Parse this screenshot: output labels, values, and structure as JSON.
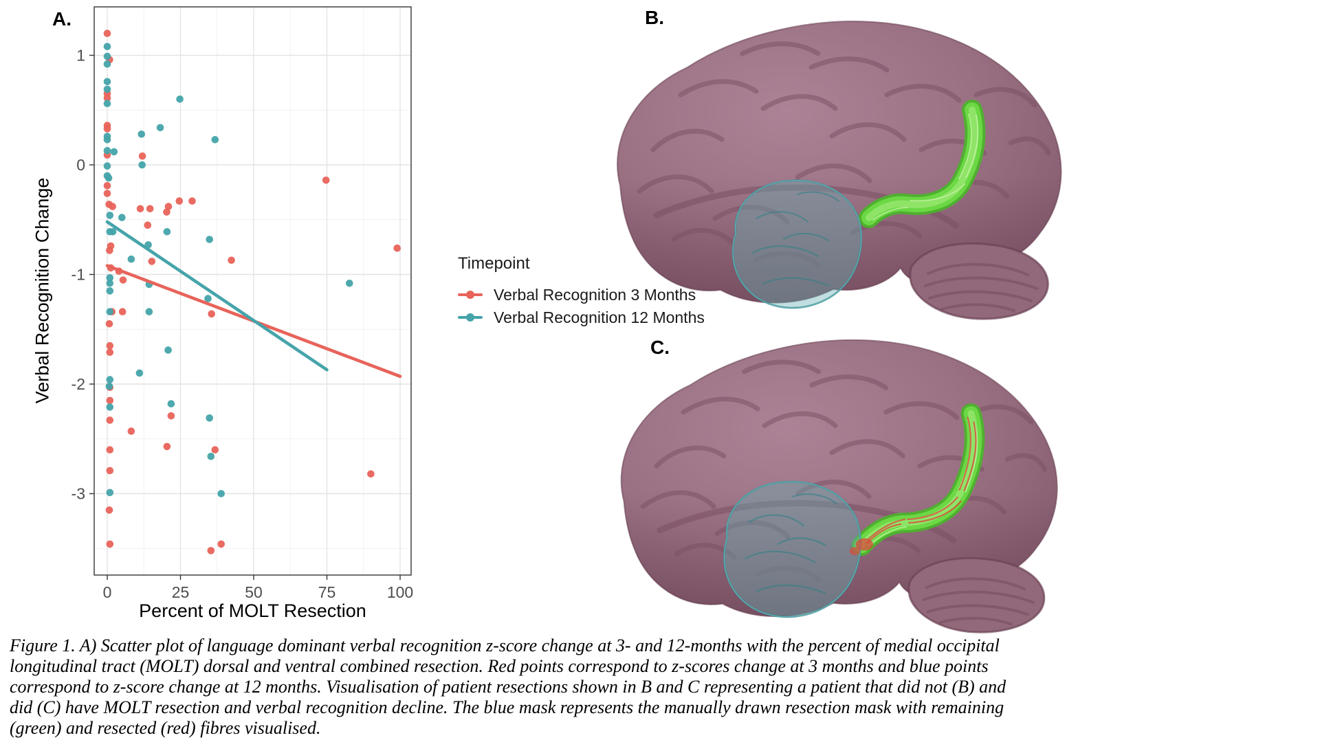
{
  "figure": {
    "panel_a_label": "A.",
    "panel_b_label": "B.",
    "panel_c_label": "C."
  },
  "chart_data": {
    "type": "scatter",
    "title": "",
    "xlabel": "Percent of MOLT Resection",
    "ylabel": "Verbal Recognition Change",
    "xlim": [
      -4.5,
      103.8
    ],
    "ylim": [
      -3.74,
      1.45
    ],
    "x_ticks": [
      0,
      25,
      50,
      75,
      100
    ],
    "y_ticks": [
      1,
      0,
      -1,
      -2,
      -3
    ],
    "grid": true,
    "legend_position": "right",
    "legend_title": "Timepoint",
    "series": [
      {
        "name": "Verbal Recognition 3 Months",
        "color": "#E8635A",
        "trend": {
          "x0": 0,
          "y0": -0.92,
          "x1": 100,
          "y1": -1.93
        },
        "points": [
          [
            0,
            1.2
          ],
          [
            0.8,
            0.96
          ],
          [
            0,
            0.65
          ],
          [
            0,
            0.61
          ],
          [
            0,
            0.36
          ],
          [
            0,
            0.33
          ],
          [
            0,
            0.09
          ],
          [
            12,
            0.08
          ],
          [
            74.7,
            -0.14
          ],
          [
            0,
            -0.19
          ],
          [
            0,
            -0.26
          ],
          [
            0.6,
            -0.36
          ],
          [
            1.8,
            -0.38
          ],
          [
            11.3,
            -0.4
          ],
          [
            14.6,
            -0.4
          ],
          [
            20.9,
            -0.38
          ],
          [
            20.3,
            -0.43
          ],
          [
            24.6,
            -0.33
          ],
          [
            29,
            -0.33
          ],
          [
            13.8,
            -0.55
          ],
          [
            1.2,
            -0.74
          ],
          [
            0.8,
            -0.78
          ],
          [
            15.2,
            -0.88
          ],
          [
            42.4,
            -0.87
          ],
          [
            1.2,
            -0.94
          ],
          [
            4,
            -0.97
          ],
          [
            5.4,
            -1.05
          ],
          [
            1.6,
            -1.34
          ],
          [
            5.2,
            -1.34
          ],
          [
            35.6,
            -1.36
          ],
          [
            0.7,
            -1.45
          ],
          [
            0.9,
            -1.65
          ],
          [
            0.9,
            -1.71
          ],
          [
            0.9,
            -2.03
          ],
          [
            0.9,
            -2.15
          ],
          [
            21.8,
            -2.29
          ],
          [
            0.9,
            -2.33
          ],
          [
            8.2,
            -2.43
          ],
          [
            20.4,
            -2.57
          ],
          [
            0.9,
            -2.6
          ],
          [
            36.8,
            -2.6
          ],
          [
            0.9,
            -2.79
          ],
          [
            90,
            -2.82
          ],
          [
            99,
            -0.76
          ],
          [
            0.7,
            -3.15
          ],
          [
            0.9,
            -3.46
          ],
          [
            35.4,
            -3.52
          ],
          [
            38.9,
            -3.46
          ]
        ]
      },
      {
        "name": "Verbal Recognition 12 Months",
        "color": "#45A4AA",
        "trend": {
          "x0": 0,
          "y0": -0.52,
          "x1": 75,
          "y1": -1.87
        },
        "points": [
          [
            0,
            1.08
          ],
          [
            0,
            0.99
          ],
          [
            0,
            0.92
          ],
          [
            0,
            0.76
          ],
          [
            0,
            0.69
          ],
          [
            0,
            0.56
          ],
          [
            24.8,
            0.6
          ],
          [
            18.1,
            0.34
          ],
          [
            11.7,
            0.28
          ],
          [
            0,
            0.26
          ],
          [
            0,
            0.23
          ],
          [
            36.8,
            0.23
          ],
          [
            0,
            0.13
          ],
          [
            2.3,
            0.12
          ],
          [
            0,
            -0.01
          ],
          [
            11.9,
            0.0
          ],
          [
            0,
            -0.1
          ],
          [
            0.5,
            -0.12
          ],
          [
            0.9,
            -0.46
          ],
          [
            5,
            -0.48
          ],
          [
            0.9,
            -0.61
          ],
          [
            1.9,
            -0.61
          ],
          [
            20.4,
            -0.61
          ],
          [
            34.9,
            -0.68
          ],
          [
            14,
            -0.73
          ],
          [
            8.2,
            -0.86
          ],
          [
            0.9,
            -1.03
          ],
          [
            0.9,
            -1.08
          ],
          [
            14.3,
            -1.09
          ],
          [
            82.7,
            -1.08
          ],
          [
            0.9,
            -1.15
          ],
          [
            34.4,
            -1.22
          ],
          [
            0.9,
            -1.34
          ],
          [
            14.3,
            -1.34
          ],
          [
            20.8,
            -1.69
          ],
          [
            11,
            -1.9
          ],
          [
            0.9,
            -1.96
          ],
          [
            0.7,
            -2.02
          ],
          [
            0.9,
            -2.21
          ],
          [
            21.8,
            -2.18
          ],
          [
            34.9,
            -2.31
          ],
          [
            35.4,
            -2.66
          ],
          [
            0.9,
            -2.99
          ],
          [
            38.9,
            -3.0
          ]
        ]
      }
    ]
  },
  "brain_art": {
    "cortex_light": "#AC8396",
    "cortex_mid": "#9A7083",
    "cortex_dark": "#835A6D",
    "sulcus": "#7A4E62",
    "edge": "#6B4254",
    "cerebellum": "#92687B",
    "tract_green_dark": "#4CB32C",
    "tract_green": "#6BD844",
    "tract_green_light": "#93E56B",
    "tract_fibre_light": "#C4F2A4",
    "mask_fill": "rgba(100,175,178,0.40)",
    "mask_edge": "rgba(50,140,145,0.90)",
    "resected_red": "#D9483B"
  },
  "caption": {
    "lines": [
      "Figure 1. A) Scatter plot of language dominant verbal recognition z-score change at 3- and 12-months with the percent of medial occipital",
      "longitudinal tract (MOLT) dorsal and ventral combined resection. Red points correspond to z-scores change at 3 months and blue points",
      "correspond to z-score change at 12 months. Visualisation of patient resections shown in B and C representing a patient that did not (B) and",
      "did (C) have MOLT resection and verbal recognition decline. The blue mask represents the manually drawn resection mask with remaining",
      "(green) and resected (red) fibres visualised."
    ]
  }
}
